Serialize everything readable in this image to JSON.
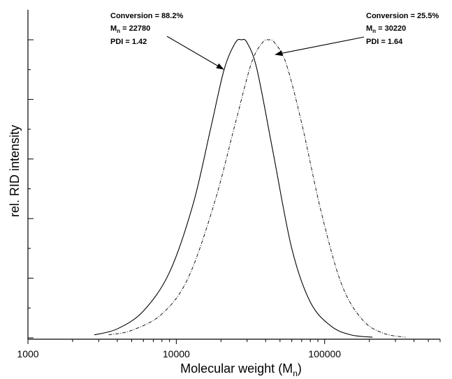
{
  "chart_data": {
    "type": "line",
    "xlabel": "Molecular weight (M",
    "xlabel_sub": "n",
    "xlabel_close": ")",
    "ylabel": "rel. RID intensity",
    "xscale": "log",
    "xlim": [
      1000,
      600000
    ],
    "ylim": [
      0,
      1.0
    ],
    "x_ticks": [
      {
        "value": 1000,
        "label": "1000"
      },
      {
        "value": 10000,
        "label": "10000"
      },
      {
        "value": 100000,
        "label": "100000"
      }
    ],
    "y_tick_labels": "none",
    "grid": false,
    "series": [
      {
        "style": "solid",
        "x": [
          2800,
          4000,
          6000,
          9000,
          13000,
          17000,
          21000,
          25000,
          27500,
          30000,
          35000,
          45000,
          60000,
          80000,
          110000,
          150000,
          210000
        ],
        "y": [
          0.01,
          0.03,
          0.09,
          0.22,
          0.45,
          0.7,
          0.9,
          0.99,
          1.0,
          0.99,
          0.9,
          0.62,
          0.3,
          0.12,
          0.04,
          0.01,
          0.002
        ]
      },
      {
        "style": "dash-dot",
        "x": [
          3500,
          5000,
          8000,
          12000,
          18000,
          25000,
          32000,
          38000,
          42000,
          46000,
          55000,
          70000,
          95000,
          130000,
          180000,
          250000,
          350000
        ],
        "y": [
          0.01,
          0.025,
          0.08,
          0.2,
          0.45,
          0.72,
          0.92,
          0.99,
          1.0,
          0.99,
          0.92,
          0.72,
          0.42,
          0.18,
          0.06,
          0.015,
          0.002
        ]
      }
    ],
    "annotations": [
      {
        "lines": [
          "Conversion = 88.2%",
          "M",
          "n",
          " = 22780",
          "PDI = 1.42"
        ],
        "conversion": "Conversion = 88.2%",
        "mn_label": "M",
        "mn_sub": "n",
        "mn_value": " = 22780",
        "pdi": "PDI = 1.42",
        "points_to": {
          "x": 21000,
          "y": 0.9
        }
      },
      {
        "conversion": "Conversion = 25.5%",
        "mn_label": "M",
        "mn_sub": "n",
        "mn_value": " = 30220",
        "pdi": "PDI = 1.64",
        "points_to": {
          "x": 46000,
          "y": 0.95
        }
      }
    ]
  }
}
